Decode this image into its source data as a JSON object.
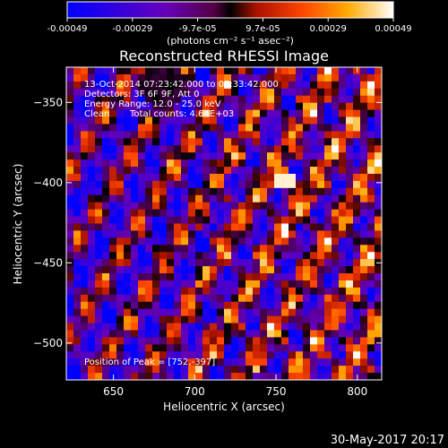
{
  "chart_data": {
    "type": "heatmap",
    "title": "Reconstructed RHESSI Image",
    "xlabel": "Heliocentric X (arcsec)",
    "ylabel": "Heliocentric Y (arcsec)",
    "xlim": [
      621,
      815
    ],
    "ylim": [
      -523,
      -328
    ],
    "xticks": [
      650,
      700,
      750,
      800
    ],
    "yticks": [
      -350,
      -400,
      -450,
      -500
    ],
    "colorbar": {
      "min": -0.00049,
      "max": 0.00049,
      "tick_labels": [
        "-0.00049",
        "-0.00029",
        "-9.7e-05",
        "9.7e-05",
        "0.00029",
        "0.00049"
      ],
      "unit": "(photons cm⁻² s⁻¹ asec⁻²)"
    },
    "info": {
      "time_range": "13-Oct-2014 07:23:42.000 to 07:33:42.000",
      "detectors": "Detectors: 3F 6F 9F, Att 0",
      "energy_range": "Energy Range: 12.0 - 25.0 keV",
      "method": "Clean",
      "total_counts": "Total counts: 4.64E+03"
    },
    "peak_position": "Position of Peak = [752,-397]",
    "image_grid": {
      "nx": 44,
      "ny": 44,
      "peak_x": 752,
      "peak_y": -397
    }
  },
  "footer": {
    "timestamp": "30-May-2017 20:17"
  }
}
